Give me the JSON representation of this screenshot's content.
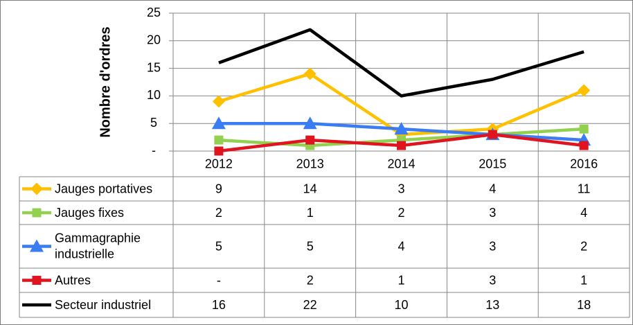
{
  "chart_data": {
    "type": "line",
    "ylabel": "Nombre d'ordres",
    "y_tick_labels": [
      "-",
      "5",
      "10",
      "15",
      "20",
      "25"
    ],
    "ylim": [
      0,
      25
    ],
    "grid": true,
    "legend_placement": "data-table-left",
    "categories": [
      "2012",
      "2013",
      "2014",
      "2015",
      "2016"
    ],
    "series": [
      {
        "name": "Jauges portatives",
        "values": [
          9,
          14,
          3,
          4,
          11
        ],
        "labels": [
          "9",
          "14",
          "3",
          "4",
          "11"
        ],
        "color": "#FFC000",
        "marker": "diamond"
      },
      {
        "name": "Jauges fixes",
        "values": [
          2,
          1,
          2,
          3,
          4
        ],
        "labels": [
          "2",
          "1",
          "2",
          "3",
          "4"
        ],
        "color": "#92D050",
        "marker": "square"
      },
      {
        "name": "Gammagraphie industrielle",
        "values": [
          5,
          5,
          4,
          3,
          2
        ],
        "labels": [
          "5",
          "5",
          "4",
          "3",
          "2"
        ],
        "color": "#3A7CF2",
        "marker": "triangle"
      },
      {
        "name": "Autres",
        "values": [
          0,
          2,
          1,
          3,
          1
        ],
        "labels": [
          "-",
          "2",
          "1",
          "3",
          "1"
        ],
        "color": "#E0141E",
        "marker": "square"
      },
      {
        "name": "Secteur industriel",
        "values": [
          16,
          22,
          10,
          13,
          18
        ],
        "labels": [
          "16",
          "22",
          "10",
          "13",
          "18"
        ],
        "color": "#000000",
        "marker": "none"
      }
    ]
  }
}
